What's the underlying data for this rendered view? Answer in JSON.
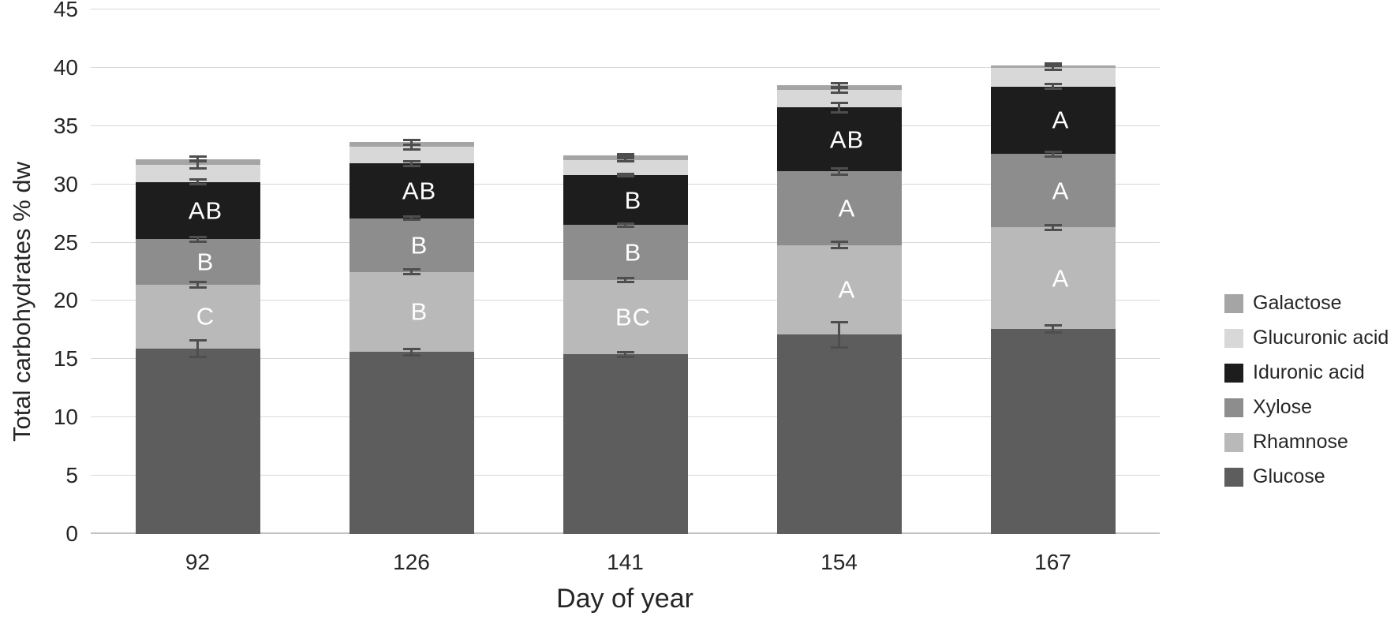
{
  "chart_data": {
    "type": "bar",
    "stacked": true,
    "title": "",
    "xlabel": "Day of year",
    "ylabel": "Total carbohydrates % dw",
    "ylim": [
      0,
      45
    ],
    "ytick_step": 5,
    "ytick_labels": [
      "0",
      "5",
      "10",
      "15",
      "20",
      "25",
      "30",
      "35",
      "40",
      "45"
    ],
    "grid": true,
    "legend_position": "right",
    "legend_order_top_to_bottom": [
      "Galactose",
      "Glucuronic acid",
      "Iduronic acid",
      "Xylose",
      "Rhamnose",
      "Glucose"
    ],
    "categories": [
      "92",
      "126",
      "141",
      "154",
      "167"
    ],
    "series": [
      {
        "name": "Glucose",
        "color": "#5d5d5d",
        "values": [
          15.9,
          15.6,
          15.4,
          17.1,
          17.6
        ],
        "errors": [
          0.8,
          0.35,
          0.3,
          1.2,
          0.4
        ],
        "letters": [
          "",
          "",
          "",
          "",
          ""
        ]
      },
      {
        "name": "Rhamnose",
        "color": "#b9b9b9",
        "values": [
          5.5,
          6.9,
          6.4,
          7.7,
          8.7
        ],
        "errors": [
          0.35,
          0.3,
          0.25,
          0.4,
          0.3
        ],
        "letters": [
          "C",
          "B",
          "BC",
          "A",
          "A"
        ]
      },
      {
        "name": "Xylose",
        "color": "#8d8d8d",
        "values": [
          3.9,
          4.6,
          4.7,
          6.3,
          6.3
        ],
        "errors": [
          0.3,
          0.25,
          0.25,
          0.35,
          0.3
        ],
        "letters": [
          "B",
          "B",
          "B",
          "A",
          "A"
        ]
      },
      {
        "name": "Iduronic acid",
        "color": "#1d1d1d",
        "values": [
          4.9,
          4.7,
          4.3,
          5.5,
          5.8
        ],
        "errors": [
          0.3,
          0.3,
          0.2,
          0.5,
          0.3
        ],
        "letters": [
          "AB",
          "AB",
          "B",
          "AB",
          "A"
        ]
      },
      {
        "name": "Glucuronic acid",
        "color": "#d8d8d8",
        "values": [
          1.5,
          1.4,
          1.3,
          1.5,
          1.6
        ],
        "errors": [
          0.45,
          0.3,
          0.25,
          0.35,
          0.25
        ],
        "letters": [
          "",
          "",
          "",
          "",
          ""
        ]
      },
      {
        "name": "Galactose",
        "color": "#a5a5a5",
        "values": [
          0.45,
          0.4,
          0.4,
          0.4,
          0.2
        ],
        "errors": [
          0.3,
          0.3,
          0.2,
          0.3,
          0.15
        ],
        "letters": [
          "",
          "",
          "",
          "",
          ""
        ]
      }
    ],
    "styling": {
      "gridline_color": "#d8d8d8",
      "axis_line_color": "#c3c3c3",
      "error_bar_color": "#4e4e4e",
      "letter_color": "#ffffff",
      "text_color": "#262626",
      "background_color": "#ffffff"
    }
  }
}
